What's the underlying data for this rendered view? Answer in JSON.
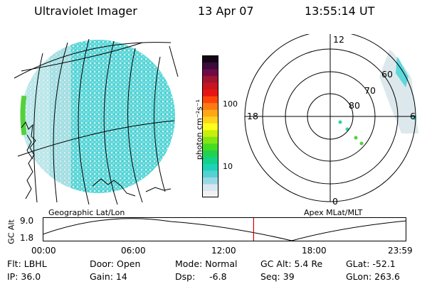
{
  "header": {
    "title": "Ultraviolet Imager",
    "date": "13 Apr 07",
    "time": "13:55:14 UT"
  },
  "colorbar": {
    "unit_label": "photon cm⁻²s⁻¹",
    "scale": "log",
    "ticks": [
      "10",
      "100"
    ],
    "colors": [
      "#f2f2f2",
      "#d8e8ee",
      "#9ad8e6",
      "#52d2d2",
      "#1ed2b8",
      "#12d28a",
      "#20d24e",
      "#46dc22",
      "#82e614",
      "#c6f00c",
      "#ffff1e",
      "#ffd21e",
      "#ffa814",
      "#ff7a14",
      "#ff460a",
      "#e61414",
      "#c8141e",
      "#a01432",
      "#700a46",
      "#3c0a3c",
      "#140514"
    ]
  },
  "left_panel": {
    "caption": "Geographic Lat/Lon"
  },
  "right_panel": {
    "caption": "Apex MLat/MLT",
    "mlt_labels": [
      "12",
      "18",
      "6",
      "0"
    ],
    "mlat_labels": [
      "60",
      "70",
      "80"
    ]
  },
  "altitude_plot": {
    "ylabel": "GC Alt",
    "yticks": [
      "9.0",
      "1.8"
    ],
    "xticks": [
      "00:00",
      "06:00",
      "12:00",
      "18:00",
      "23:59"
    ],
    "current_time_hours": 13.92,
    "marker_color": "#cc0000"
  },
  "info_rows": [
    [
      "Flt: LBHL",
      "Door: Open",
      "Mode: Normal",
      "GC Alt: 5.4 Re",
      "GLat: -52.1"
    ],
    [
      "IP: 36.0",
      "Gain: 14",
      "Dsp:     -6.8",
      "Seq: 39",
      "GLon: 263.6"
    ]
  ]
}
